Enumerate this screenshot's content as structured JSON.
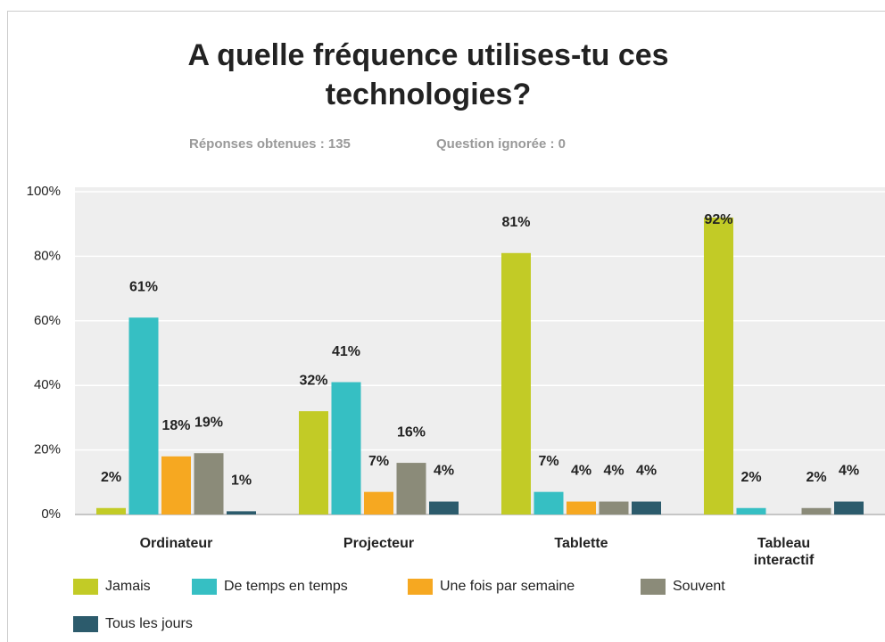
{
  "chart_data": {
    "type": "bar",
    "title": "A quelle fréquence utilises-tu ces technologies?",
    "answered": "Réponses obtenues : 135",
    "skipped": "Question ignorée : 0",
    "categories": [
      "Ordinateur",
      "Projecteur",
      "Tablette",
      "Tableau interactif"
    ],
    "series": [
      {
        "name": "Jamais",
        "color": "#c2cb26",
        "values": [
          2,
          32,
          81,
          92
        ],
        "value_labels": [
          "2%",
          "32%",
          "81%",
          "92%"
        ]
      },
      {
        "name": "De temps en temps",
        "color": "#36bfc3",
        "values": [
          61,
          41,
          7,
          2
        ],
        "value_labels": [
          "61%",
          "41%",
          "7%",
          "2%"
        ]
      },
      {
        "name": "Une fois par semaine",
        "color": "#f6a821",
        "values": [
          18,
          7,
          4,
          null
        ],
        "value_labels": [
          "18%",
          "7%",
          "4%",
          null
        ]
      },
      {
        "name": "Souvent",
        "color": "#8b8b79",
        "values": [
          19,
          16,
          4,
          2
        ],
        "value_labels": [
          "19%",
          "16%",
          "4%",
          "2%"
        ]
      },
      {
        "name": "Tous les jours",
        "color": "#2c5b6c",
        "values": [
          1,
          4,
          4,
          4
        ],
        "value_labels": [
          "1%",
          "4%",
          "4%",
          "4%"
        ]
      }
    ],
    "ylim": [
      0,
      100
    ],
    "yticks": [
      {
        "value": 0,
        "label": "0%"
      },
      {
        "value": 20,
        "label": "20%"
      },
      {
        "value": 40,
        "label": "40%"
      },
      {
        "value": 60,
        "label": "60%"
      },
      {
        "value": 80,
        "label": "80%"
      },
      {
        "value": 100,
        "label": "100%"
      }
    ],
    "grid": true
  }
}
